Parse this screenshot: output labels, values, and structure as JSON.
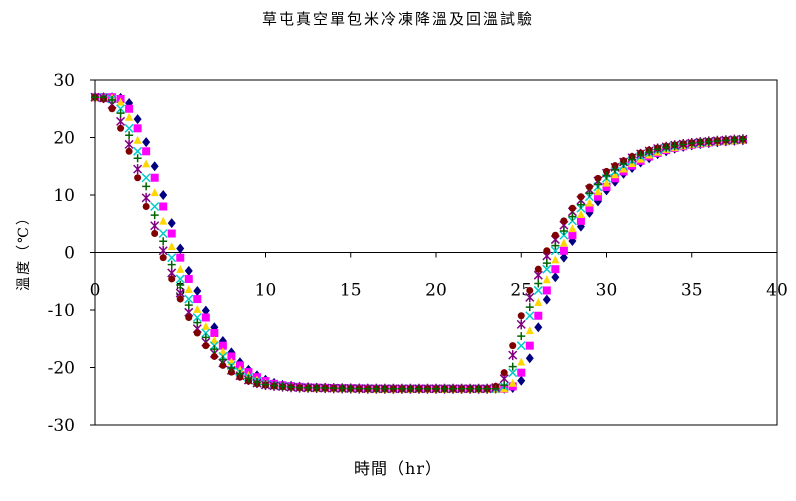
{
  "chart_data": {
    "type": "scatter",
    "title": "草屯真空單包米冷凍降溫及回溫試驗",
    "xlabel": "時間（hr）",
    "ylabel": "溫度（℃）",
    "xlim": [
      0,
      40
    ],
    "ylim": [
      -30,
      30
    ],
    "xticks": [
      0,
      5,
      10,
      15,
      20,
      25,
      30,
      35,
      40
    ],
    "yticks": [
      30,
      20,
      10,
      0,
      -10,
      -20,
      -30
    ],
    "grid": false,
    "legend": "none",
    "series": [
      {
        "marker": "diamond",
        "color": "#000080",
        "shift": 0.9
      },
      {
        "marker": "square",
        "color": "#ff00ff",
        "shift": 0.7
      },
      {
        "marker": "triangle",
        "color": "#ffd700",
        "shift": 0.45
      },
      {
        "marker": "x",
        "color": "#00cccc",
        "shift": 0.2
      },
      {
        "marker": "star",
        "color": "#800080",
        "shift": -0.15
      },
      {
        "marker": "circle",
        "color": "#800000",
        "shift": -0.3
      },
      {
        "marker": "plus",
        "color": "#006400",
        "shift": 0.05
      }
    ],
    "base_curve": [
      [
        0,
        27
      ],
      [
        0.5,
        27
      ],
      [
        1,
        26.5
      ],
      [
        1.5,
        24
      ],
      [
        2,
        20
      ],
      [
        2.5,
        16
      ],
      [
        3,
        11
      ],
      [
        3.5,
        6
      ],
      [
        4,
        1.5
      ],
      [
        4.5,
        -2.5
      ],
      [
        5,
        -6
      ],
      [
        5.5,
        -9.5
      ],
      [
        6,
        -12.5
      ],
      [
        6.5,
        -15
      ],
      [
        7,
        -17
      ],
      [
        7.5,
        -18.8
      ],
      [
        8,
        -20.2
      ],
      [
        8.5,
        -21.2
      ],
      [
        9,
        -22
      ],
      [
        9.5,
        -22.6
      ],
      [
        10,
        -23
      ],
      [
        11,
        -23.3
      ],
      [
        12,
        -23.5
      ],
      [
        14,
        -23.6
      ],
      [
        16,
        -23.7
      ],
      [
        18,
        -23.7
      ],
      [
        20,
        -23.7
      ],
      [
        22,
        -23.7
      ],
      [
        23.5,
        -23.7
      ],
      [
        24,
        -23
      ],
      [
        24.5,
        -19.5
      ],
      [
        25,
        -14
      ],
      [
        25.5,
        -9
      ],
      [
        26,
        -5
      ],
      [
        26.5,
        -1.5
      ],
      [
        27,
        1.5
      ],
      [
        27.5,
        4
      ],
      [
        28,
        6.5
      ],
      [
        28.5,
        8.5
      ],
      [
        29,
        10.5
      ],
      [
        29.5,
        12
      ],
      [
        30,
        13.5
      ],
      [
        31,
        15.5
      ],
      [
        32,
        17
      ],
      [
        33,
        18
      ],
      [
        34,
        18.6
      ],
      [
        35,
        19
      ],
      [
        36,
        19.3
      ],
      [
        37,
        19.5
      ],
      [
        38,
        19.7
      ]
    ]
  }
}
